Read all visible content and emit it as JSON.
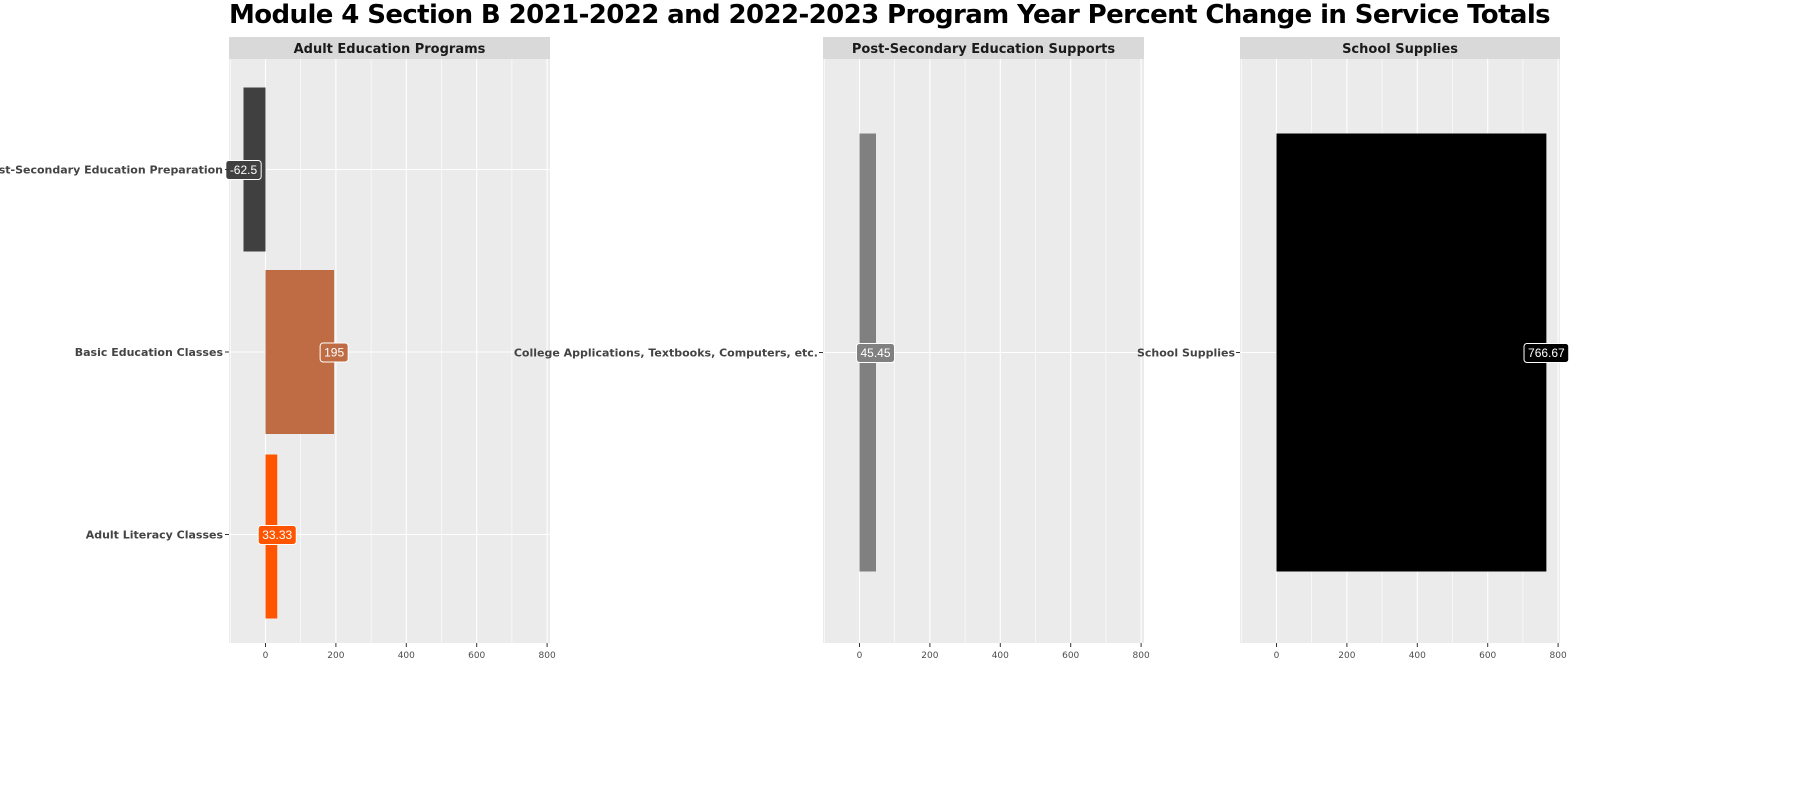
{
  "chart_data": {
    "type": "bar",
    "orientation": "horizontal",
    "title": "Module 4 Section B 2021-2022 and 2022-2023 Program Year Percent Change in Service Totals",
    "xlim": [
      -100,
      800
    ],
    "x_ticks": [
      0,
      200,
      400,
      600,
      800
    ],
    "grid": true,
    "panels": [
      {
        "name": "Adult Education Programs",
        "categories": [
          "Post-Secondary Education Preparation",
          "Basic Education Classes",
          "Adult Literacy Classes"
        ],
        "values": [
          -62.5,
          195,
          33.33
        ],
        "labels": [
          "-62.5",
          "195",
          "33.33"
        ],
        "colors": [
          "#404040",
          "#bf6c44",
          "#ff5500"
        ]
      },
      {
        "name": "Post-Secondary Education Supports",
        "categories": [
          "College Applications, Textbooks, Computers, etc."
        ],
        "values": [
          45.45
        ],
        "labels": [
          "45.45"
        ],
        "colors": [
          "#808080"
        ]
      },
      {
        "name": "School Supplies",
        "categories": [
          "School Supplies"
        ],
        "values": [
          766.67
        ],
        "labels": [
          "766.67"
        ],
        "colors": [
          "#000000"
        ]
      }
    ]
  }
}
